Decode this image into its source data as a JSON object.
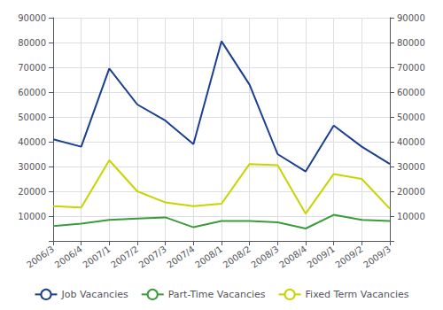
{
  "chart_data": {
    "type": "line",
    "categories": [
      "2006/3",
      "2006/4",
      "2007/1",
      "2007/2",
      "2007/3",
      "2007/4",
      "2008/1",
      "2008/2",
      "2008/3",
      "2008/4",
      "2009/1",
      "2009/2",
      "2009/3"
    ],
    "series": [
      {
        "name": "Job Vacancies",
        "color": "#1a3f8f",
        "values": [
          41000,
          38000,
          69500,
          55000,
          48500,
          39000,
          80500,
          63000,
          35000,
          28000,
          46500,
          38000,
          31000
        ]
      },
      {
        "name": "Part-Time Vacancies",
        "color": "#3a9c3a",
        "values": [
          6000,
          7000,
          8500,
          9000,
          9500,
          5500,
          8000,
          8000,
          7500,
          5000,
          10500,
          8500,
          8000
        ]
      },
      {
        "name": "Fixed Term Vacancies",
        "color": "#c8d400",
        "values": [
          14000,
          13500,
          32500,
          20000,
          15500,
          14000,
          15000,
          31000,
          30500,
          11000,
          27000,
          25000,
          13000
        ]
      }
    ],
    "ylim": [
      0,
      90000
    ],
    "yticks": [
      10000,
      20000,
      30000,
      40000,
      50000,
      60000,
      70000,
      80000,
      90000
    ],
    "y2lim": [
      0,
      90000
    ],
    "y2ticks": [
      10000,
      20000,
      30000,
      40000,
      50000,
      60000,
      70000,
      80000,
      90000
    ],
    "grid": true,
    "legend": "bottom"
  }
}
